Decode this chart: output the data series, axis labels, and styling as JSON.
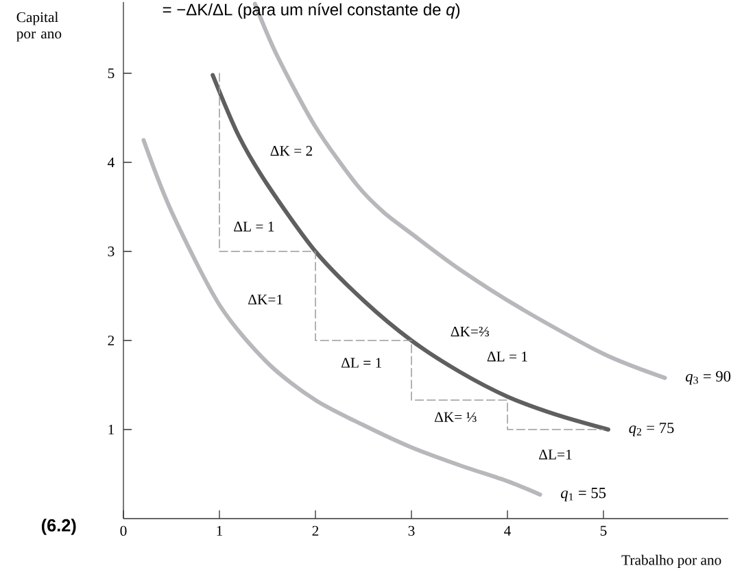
{
  "chart_data": {
    "type": "line",
    "title": "= −ΔK/ΔL (para um nível constante de *q*)",
    "xlabel": "Trabalho por ano",
    "ylabel": "Capital por ano",
    "xlim": [
      0,
      6.3
    ],
    "ylim": [
      0,
      5.8
    ],
    "xticks": [
      0,
      1,
      2,
      3,
      4,
      5
    ],
    "yticks": [
      1,
      2,
      3,
      4,
      5
    ],
    "marker": "none",
    "series": [
      {
        "name": "*q*$_{1}$ = 55",
        "color": "#b8b8bc",
        "line_style": "solid",
        "x": [
          0.21,
          0.5,
          1.0,
          1.5,
          2.0,
          2.5,
          3.0,
          3.5,
          4.0,
          4.34
        ],
        "values": [
          4.25,
          3.45,
          2.4,
          1.75,
          1.33,
          1.05,
          0.8,
          0.6,
          0.42,
          0.27
        ]
      },
      {
        "name": "*q*$_{2}$ = 75",
        "color": "#5f5f5f",
        "line_style": "solid",
        "x": [
          0.93,
          1.2,
          1.5,
          2,
          2.5,
          3,
          3.5,
          4,
          4.5,
          5.05
        ],
        "values": [
          4.98,
          4.3,
          3.75,
          3,
          2.45,
          2,
          1.65,
          1.37,
          1.17,
          1.0
        ]
      },
      {
        "name": "*q*$_{3}$ = 90",
        "color": "#b8b8bc",
        "line_style": "solid",
        "x": [
          1.37,
          1.6,
          2.0,
          2.43,
          2.71,
          3.0,
          3.5,
          4.14,
          5.0,
          5.64
        ],
        "values": [
          5.78,
          5.2,
          4.4,
          3.75,
          3.44,
          3.2,
          2.8,
          2.36,
          1.85,
          1.58
        ]
      },
      {
        "color": "#9a9a9a",
        "line_style": "dashed",
        "x": [
          1,
          1,
          2,
          2,
          3,
          3,
          4,
          4,
          5
        ],
        "values": [
          5,
          3,
          3,
          2,
          2,
          1.33,
          1.33,
          1,
          1
        ]
      }
    ],
    "annotations": [
      "(6.2)",
      "ΔK = 2",
      "ΔL = 1",
      "ΔK=1",
      "ΔL = 1",
      "ΔK=⅔",
      "ΔL = 1",
      "ΔK= ⅓",
      "ΔL=1"
    ]
  }
}
